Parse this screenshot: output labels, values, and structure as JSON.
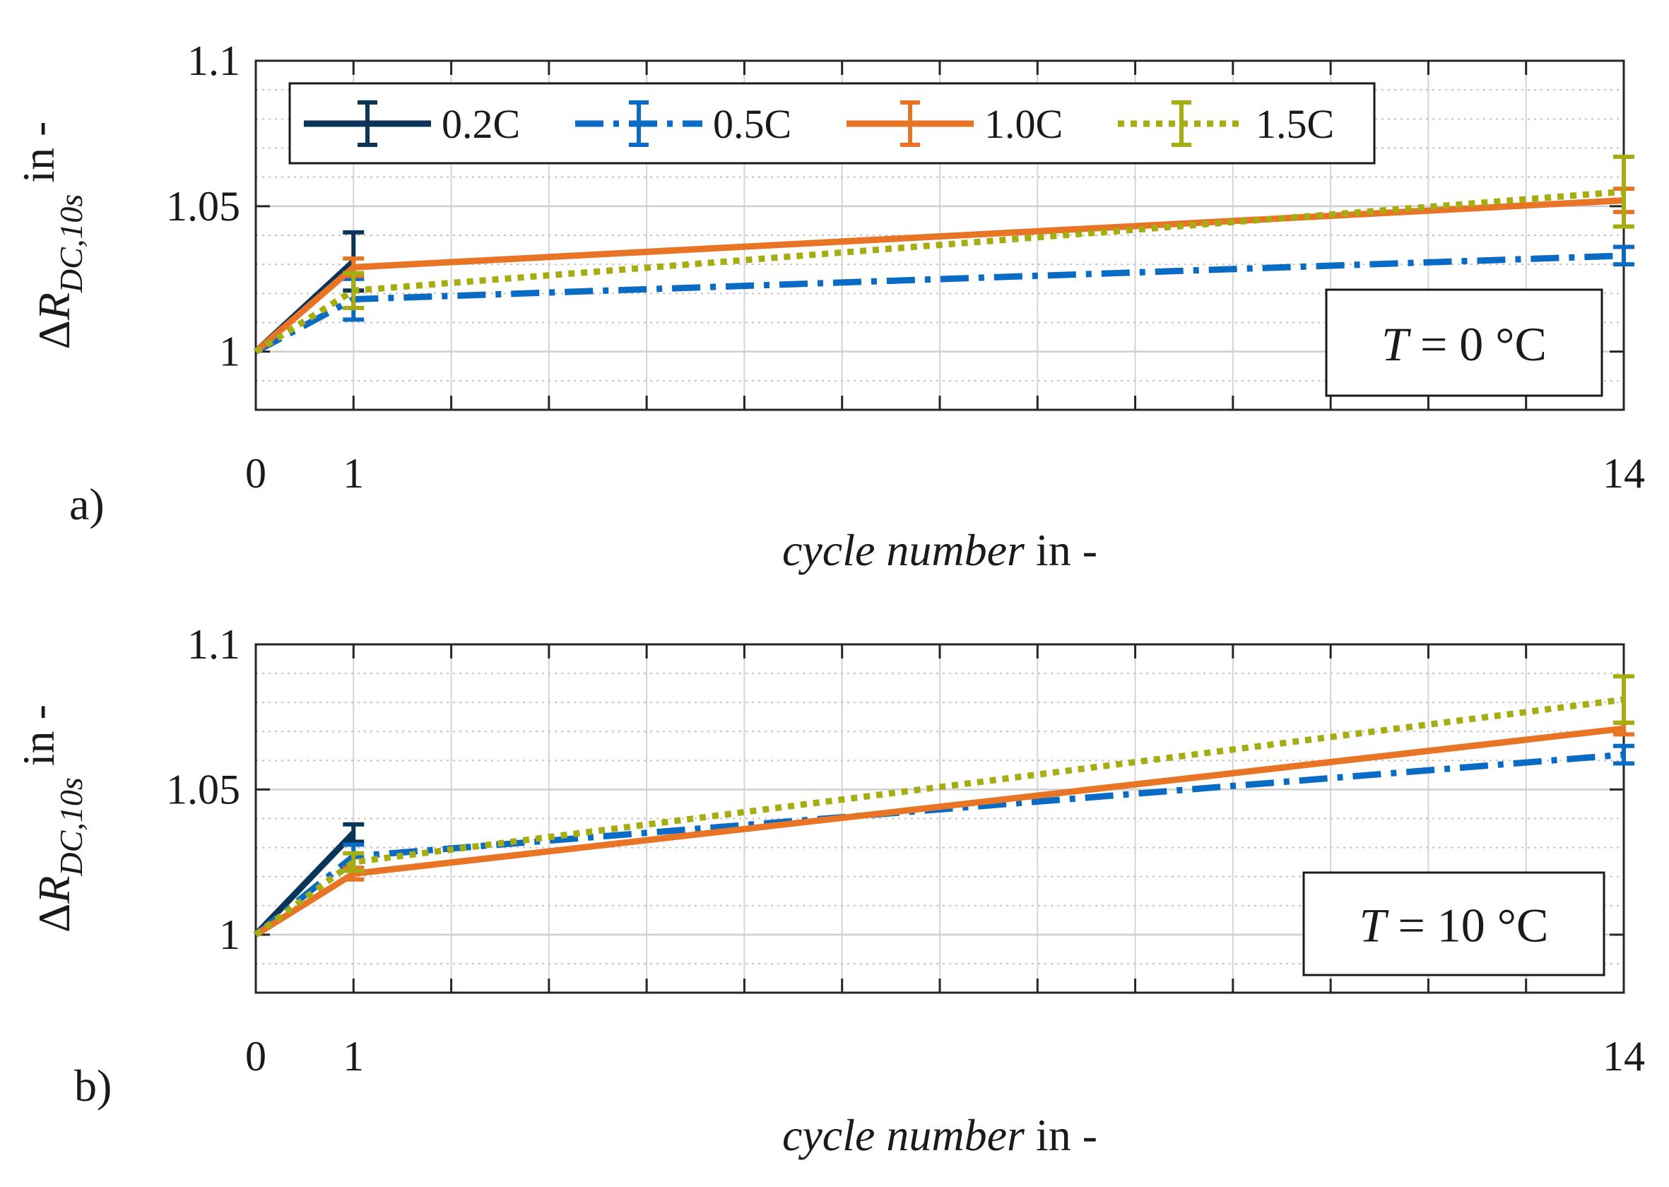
{
  "chart_data": [
    {
      "type": "line",
      "panel_label": "a)",
      "temperature_label": {
        "prefix": "T",
        "value": " = 0 °C"
      },
      "xlabel": {
        "italic": "cycle number",
        "unit": " in -"
      },
      "ylabel": {
        "delta": "Δ",
        "symbol": "R",
        "subscript": "DC,10s",
        "unit": " in -"
      },
      "x_ticks": [
        0,
        1,
        14
      ],
      "y_tick_labels": [
        "1",
        "1.05",
        "1.1"
      ],
      "y_ticks": [
        1.0,
        1.05,
        1.1
      ],
      "xlim": [
        0,
        14
      ],
      "ylim": [
        0.98,
        1.1
      ],
      "grid": true,
      "legend_position": "top",
      "series": [
        {
          "name": "0.2C",
          "color": "#0b3558",
          "style": "solid",
          "x": [
            0,
            1
          ],
          "y": [
            1.0,
            1.031
          ],
          "err": [
            0,
            0.01
          ]
        },
        {
          "name": "0.5C",
          "color": "#0a6bc4",
          "style": "dashdot",
          "x": [
            0,
            1,
            14
          ],
          "y": [
            1.0,
            1.018,
            1.033
          ],
          "err": [
            0,
            0.007,
            0.003
          ]
        },
        {
          "name": "1.0C",
          "color": "#e87525",
          "style": "solid",
          "x": [
            0,
            1,
            14
          ],
          "y": [
            1.0,
            1.029,
            1.052
          ],
          "err": [
            0,
            0.003,
            0.004
          ]
        },
        {
          "name": "1.5C",
          "color": "#a5ad10",
          "style": "dotted",
          "x": [
            0,
            1,
            14
          ],
          "y": [
            1.0,
            1.021,
            1.055
          ],
          "err": [
            0,
            0.006,
            0.012
          ]
        }
      ]
    },
    {
      "type": "line",
      "panel_label": "b)",
      "temperature_label": {
        "prefix": "T",
        "value": " = 10 °C"
      },
      "xlabel": {
        "italic": "cycle number",
        "unit": " in -"
      },
      "ylabel": {
        "delta": "Δ",
        "symbol": "R",
        "subscript": "DC,10s",
        "unit": " in -"
      },
      "x_ticks": [
        0,
        1,
        14
      ],
      "y_tick_labels": [
        "1",
        "1.05",
        "1.1"
      ],
      "y_ticks": [
        1.0,
        1.05,
        1.1
      ],
      "xlim": [
        0,
        14
      ],
      "ylim": [
        0.98,
        1.1
      ],
      "grid": true,
      "legend_position": "none",
      "series": [
        {
          "name": "0.2C",
          "color": "#0b3558",
          "style": "solid",
          "x": [
            0,
            1
          ],
          "y": [
            1.0,
            1.035
          ],
          "err": [
            0,
            0.003
          ]
        },
        {
          "name": "0.5C",
          "color": "#0a6bc4",
          "style": "dashdot",
          "x": [
            0,
            1,
            14
          ],
          "y": [
            1.0,
            1.027,
            1.062
          ],
          "err": [
            0,
            0.004,
            0.003
          ]
        },
        {
          "name": "1.0C",
          "color": "#e87525",
          "style": "solid",
          "x": [
            0,
            1,
            14
          ],
          "y": [
            1.0,
            1.021,
            1.071
          ],
          "err": [
            0,
            0.002,
            0.002
          ]
        },
        {
          "name": "1.5C",
          "color": "#a5ad10",
          "style": "dotted",
          "x": [
            0,
            1,
            14
          ],
          "y": [
            1.0,
            1.025,
            1.081
          ],
          "err": [
            0,
            0.003,
            0.008
          ]
        }
      ]
    }
  ]
}
